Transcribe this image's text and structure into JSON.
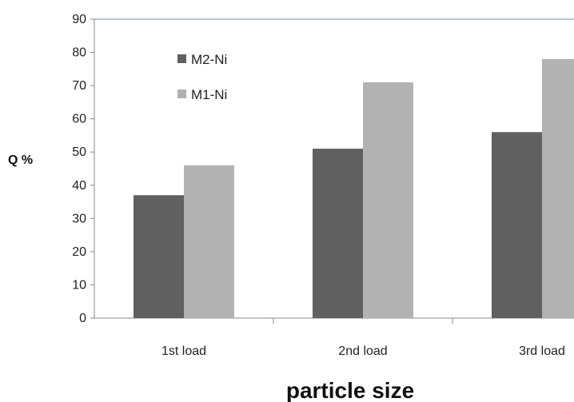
{
  "chart_data": {
    "type": "bar",
    "categories": [
      "1st load",
      "2nd load",
      "3rd load"
    ],
    "series": [
      {
        "name": "M2-Ni",
        "values": [
          37,
          51,
          56
        ],
        "color": "#606060"
      },
      {
        "name": "M1-Ni",
        "values": [
          46,
          71,
          78
        ],
        "color": "#b2b2b2"
      }
    ],
    "yticks": [
      "0",
      "10",
      "20",
      "30",
      "40",
      "50",
      "60",
      "70",
      "80",
      "90"
    ],
    "ylim": [
      0,
      90
    ],
    "ylabel": "Q %",
    "xlabel": "particle size",
    "grid": false,
    "legend_position": "top-left"
  }
}
